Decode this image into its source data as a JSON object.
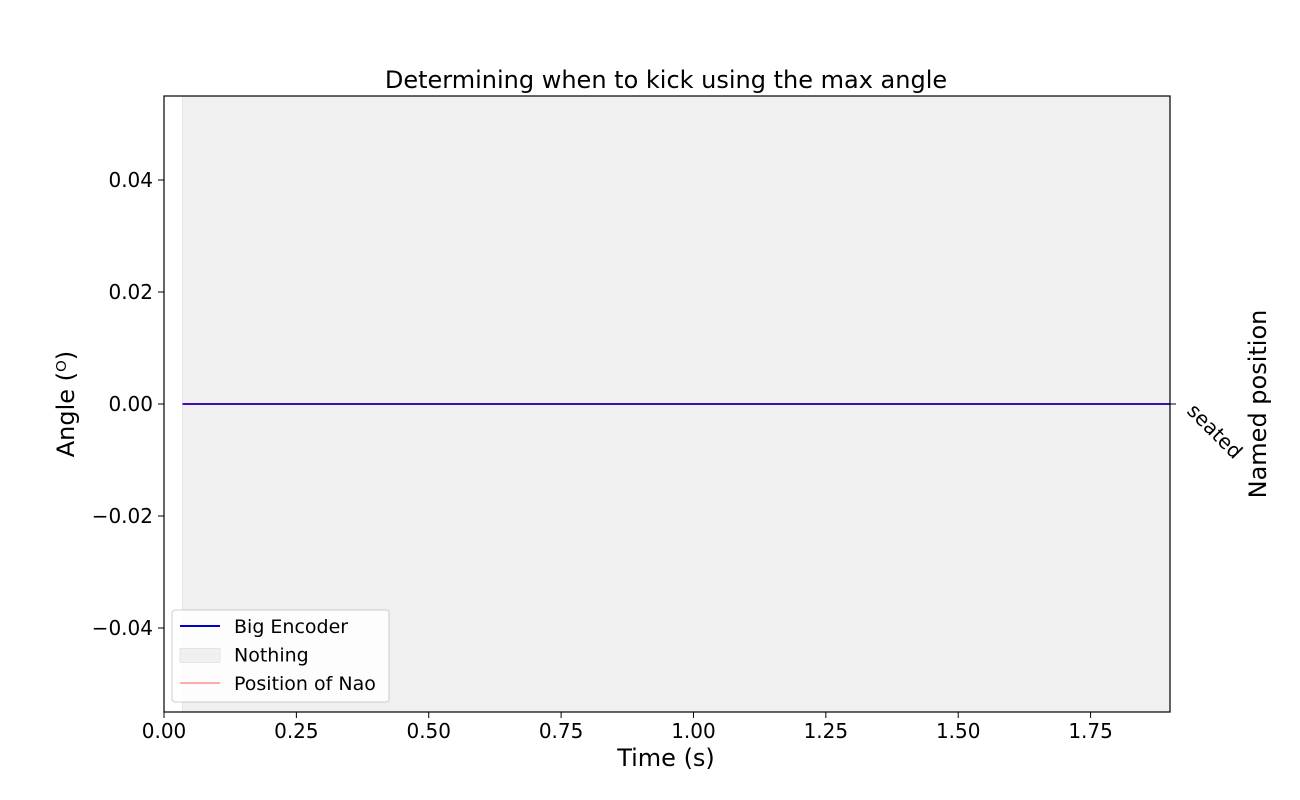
{
  "chart_data": {
    "type": "line",
    "title": "Determining when to kick using the max angle",
    "xlabel": "Time (s)",
    "ylabel": "Angle (ᴼ)",
    "ylabel_right": "Named position",
    "xlim": [
      0.0,
      1.9
    ],
    "ylim": [
      -0.055,
      0.055
    ],
    "xticks": [
      "0.00",
      "0.25",
      "0.50",
      "0.75",
      "1.00",
      "1.25",
      "1.50",
      "1.75"
    ],
    "yticks": [
      "0.04",
      "0.02",
      "0.00",
      "−0.02",
      "−0.04"
    ],
    "right_tick_labels": [
      "seated"
    ],
    "grid": false,
    "legend_position": "lower-left",
    "shaded_regions": [
      {
        "name": "Nothing",
        "x": [
          0.035,
          1.9
        ],
        "color": "#f0f0f0"
      }
    ],
    "series": [
      {
        "name": "Big Encoder",
        "color": "#0000cc",
        "x": [
          0.035,
          1.9
        ],
        "y": [
          0.0,
          0.0
        ]
      },
      {
        "name": "Position of Nao",
        "color": "#ff3333",
        "x": [
          0.035,
          1.9
        ],
        "y": [
          0.0,
          0.0
        ]
      }
    ],
    "legend": [
      {
        "label": "Big Encoder",
        "kind": "line",
        "color": "#0000cc"
      },
      {
        "label": "Nothing",
        "kind": "patch",
        "color": "#f0f0f0"
      },
      {
        "label": "Position of Nao",
        "kind": "thin-line",
        "color": "#ff3333"
      }
    ]
  }
}
